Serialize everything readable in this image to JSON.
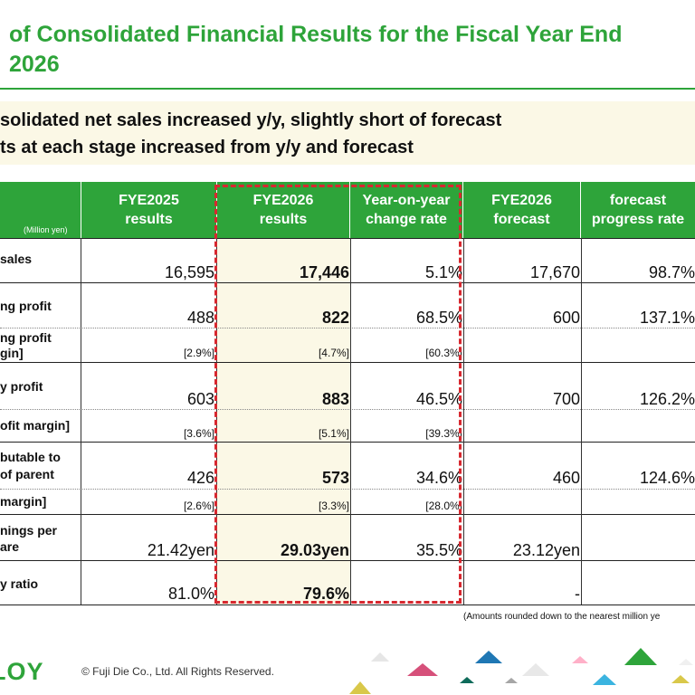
{
  "title": {
    "line1": "of Consolidated Financial Results for the Fiscal Year End",
    "line2": "2026"
  },
  "summary": {
    "line1": "solidated net sales increased y/y, slightly short of forecast",
    "line2": "ts at each stage increased from  y/y and forecast"
  },
  "table": {
    "unit": "(Million yen)",
    "headers": [
      "FYE2025\nresults",
      "FYE2026\nresults",
      "Year-on-year\nchange rate",
      "FYE2026\nforecast",
      "forecast\nprogress rate"
    ],
    "rows": [
      {
        "label": "sales",
        "fy25": "16,595",
        "fy26": "17,446",
        "yoy": "5.1%",
        "fc": "17,670",
        "prog": "98.7%"
      },
      {
        "label": "ng profit",
        "fy25": "488",
        "fy26": "822",
        "yoy": "68.5%",
        "fc": "600",
        "prog": "137.1%",
        "sub_label": [
          "ng profit",
          "gin]"
        ],
        "sub": {
          "fy25": "[2.9%]",
          "fy26": "[4.7%]",
          "yoy": "[60.3%]"
        }
      },
      {
        "label": "y profit",
        "fy25": "603",
        "fy26": "883",
        "yoy": "46.5%",
        "fc": "700",
        "prog": "126.2%",
        "sub_label": "ofit margin]",
        "sub": {
          "fy25": "[3.6%]",
          "fy26": "[5.1%]",
          "yoy": "[39.3%]"
        }
      },
      {
        "label": [
          "butable to",
          "of parent"
        ],
        "fy25": "426",
        "fy26": "573",
        "yoy": "34.6%",
        "fc": "460",
        "prog": "124.6%",
        "sub_label": "margin]",
        "sub": {
          "fy25": "[2.6%]",
          "fy26": "[3.3%]",
          "yoy": "[28.0%]"
        }
      },
      {
        "label": [
          "nings per",
          "are"
        ],
        "fy25": "21.42yen",
        "fy26": "29.03yen",
        "yoy": "35.5%",
        "fc": "23.12yen",
        "prog": ""
      },
      {
        "label": "y ratio",
        "fy25": "81.0%",
        "fy26": "79.6%",
        "yoy": "",
        "fc": "-",
        "prog": ""
      }
    ]
  },
  "note": "(Amounts rounded down to the nearest million ye",
  "footer": {
    "logo": "LOY",
    "copyright": "© Fuji Die Co., Ltd. All Rights Reserved."
  },
  "colors": {
    "brand_green": "#2ea43a",
    "highlight_bg": "#fbf8e6",
    "dash_red": "#d7282f"
  }
}
